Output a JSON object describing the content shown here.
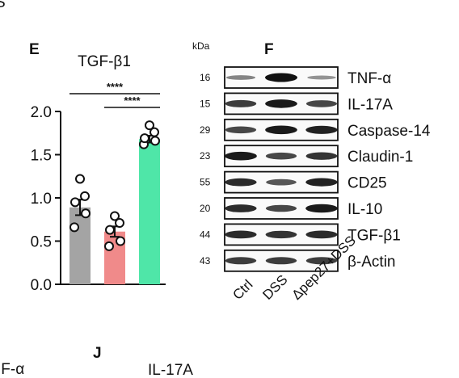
{
  "top_fragment": "S",
  "panel_e": {
    "letter": "E",
    "chart_data": {
      "type": "bar",
      "title": "TGF-β1",
      "categories": [
        "Ctrl",
        "DSS",
        "Δpep27+DSS"
      ],
      "series": [
        {
          "values": [
            0.89,
            0.61,
            1.68
          ],
          "points": [
            [
              0.66,
              0.82,
              0.95,
              1.02,
              1.22
            ],
            [
              0.44,
              0.5,
              0.63,
              0.71,
              0.79
            ],
            [
              1.62,
              1.66,
              1.69,
              1.76,
              1.84
            ]
          ],
          "sem": [
            0.09,
            0.06,
            0.04
          ]
        }
      ],
      "colors": [
        "#a4a4a4",
        "#f08a8a",
        "#4fe6a8"
      ],
      "ylim": [
        0,
        2.0
      ],
      "yticks": [
        "0.0",
        "0.5",
        "1.0",
        "1.5",
        "2.0"
      ],
      "significance": [
        {
          "pair": [
            "Ctrl",
            "Δpep27+DSS"
          ],
          "label": "****"
        },
        {
          "pair": [
            "DSS",
            "Δpep27+DSS"
          ],
          "label": "****"
        }
      ],
      "grid": false
    }
  },
  "panel_f": {
    "letter": "F",
    "unit_label": "kDa",
    "rows": [
      {
        "kda": "16",
        "protein": "TNF-α",
        "intensity": [
          0.35,
          1.0,
          0.25
        ]
      },
      {
        "kda": "15",
        "protein": "IL-17A",
        "intensity": [
          0.75,
          0.95,
          0.7
        ]
      },
      {
        "kda": "29",
        "protein": "Caspase-14",
        "intensity": [
          0.7,
          0.95,
          0.9
        ]
      },
      {
        "kda": "23",
        "protein": "Claudin-1",
        "intensity": [
          0.95,
          0.7,
          0.8
        ]
      },
      {
        "kda": "55",
        "protein": "CD25",
        "intensity": [
          0.85,
          0.6,
          0.9
        ]
      },
      {
        "kda": "20",
        "protein": "IL-10",
        "intensity": [
          0.85,
          0.7,
          0.95
        ]
      },
      {
        "kda": "44",
        "protein": "TGF-β1",
        "intensity": [
          0.85,
          0.8,
          0.85
        ]
      },
      {
        "kda": "43",
        "protein": "β-Actin",
        "intensity": [
          0.75,
          0.75,
          0.75
        ]
      }
    ],
    "lanes": [
      "Ctrl",
      "DSS",
      "Δpep27+DSS"
    ]
  },
  "bottom": {
    "left_fragment": "IF-α",
    "panel_j_letter": "J",
    "panel_j_title": "IL-17A"
  }
}
